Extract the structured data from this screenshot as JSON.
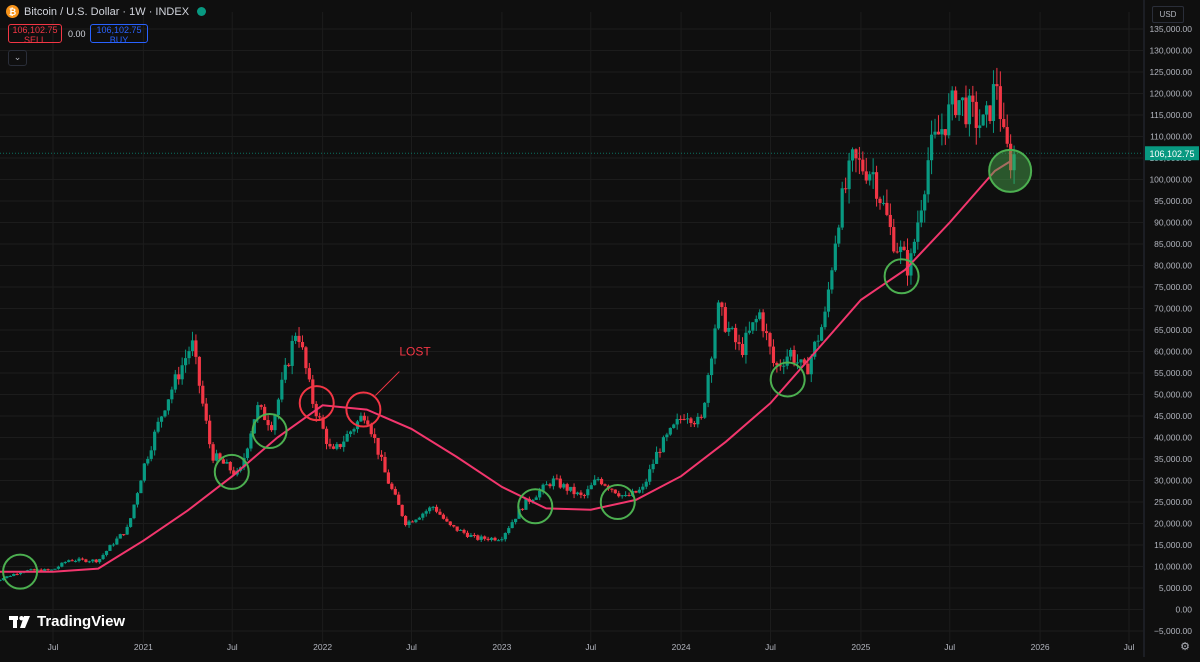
{
  "header": {
    "symbol_icon": "bitcoin-icon",
    "title": "Bitcoin / U.S. Dollar · 1W · INDEX",
    "status_color": "#089981"
  },
  "trade": {
    "sell_price": "106,102.75",
    "sell_label": "SELL",
    "spread": "0.00",
    "buy_price": "106,102.75",
    "buy_label": "BUY"
  },
  "currency": "USD",
  "brand": "TradingView",
  "colors": {
    "up": "#089981",
    "down": "#f23645",
    "ma": "#f2366d",
    "circle_green": "#4caf50",
    "circle_red": "#f23645",
    "background": "#0f0f0f"
  },
  "chart_data": {
    "type": "candlestick",
    "ylim": [
      -5000,
      135000
    ],
    "yticks": [
      "135,000.00",
      "130,000.00",
      "125,000.00",
      "120,000.00",
      "115,000.00",
      "110,000.00",
      "105,000.00",
      "100,000.00",
      "95,000.00",
      "90,000.00",
      "85,000.00",
      "80,000.00",
      "75,000.00",
      "70,000.00",
      "65,000.00",
      "60,000.00",
      "55,000.00",
      "50,000.00",
      "45,000.00",
      "40,000.00",
      "35,000.00",
      "30,000.00",
      "25,000.00",
      "20,000.00",
      "15,000.00",
      "10,000.00",
      "5,000.00",
      "0.00",
      "−5,000.00"
    ],
    "xticks": [
      "Jul",
      "2021",
      "Jul",
      "2022",
      "Jul",
      "2023",
      "Jul",
      "2024",
      "Jul",
      "2025",
      "Jul",
      "2026",
      "Jul"
    ],
    "xtick_dates": [
      "2020-07-01",
      "2021-01-01",
      "2021-07-01",
      "2022-01-01",
      "2022-07-01",
      "2023-01-01",
      "2023-07-01",
      "2024-01-01",
      "2024-07-01",
      "2025-01-01",
      "2025-07-01",
      "2026-01-01",
      "2026-07-01"
    ],
    "last_price": "106,102.75",
    "last_price_value": 106102.75,
    "annotation": "LOST",
    "series": [
      {
        "kind": "moving_average",
        "points": [
          [
            "2020-03-01",
            8800
          ],
          [
            "2020-07-01",
            8800
          ],
          [
            "2020-10-01",
            9500
          ],
          [
            "2021-01-01",
            16000
          ],
          [
            "2021-04-01",
            23000
          ],
          [
            "2021-07-01",
            31000
          ],
          [
            "2021-10-01",
            40000
          ],
          [
            "2022-01-01",
            47500
          ],
          [
            "2022-04-01",
            46500
          ],
          [
            "2022-07-01",
            42000
          ],
          [
            "2022-10-01",
            35500
          ],
          [
            "2023-01-01",
            28500
          ],
          [
            "2023-04-01",
            23500
          ],
          [
            "2023-07-01",
            23200
          ],
          [
            "2023-10-01",
            25500
          ],
          [
            "2024-01-01",
            31000
          ],
          [
            "2024-04-01",
            39000
          ],
          [
            "2024-07-01",
            48000
          ],
          [
            "2024-10-01",
            60000
          ],
          [
            "2025-01-01",
            72000
          ],
          [
            "2025-04-01",
            79000
          ],
          [
            "2025-07-01",
            90000
          ],
          [
            "2025-10-01",
            102000
          ],
          [
            "2025-11-01",
            104200
          ]
        ]
      },
      {
        "kind": "weekly_candles",
        "close_path": [
          [
            "2020-03-01",
            6500
          ],
          [
            "2020-05-01",
            9000
          ],
          [
            "2020-07-01",
            9200
          ],
          [
            "2020-08-01",
            11500
          ],
          [
            "2020-10-01",
            11400
          ],
          [
            "2020-11-01",
            15500
          ],
          [
            "2020-12-01",
            19000
          ],
          [
            "2021-01-01",
            33000
          ],
          [
            "2021-02-15",
            48000
          ],
          [
            "2021-04-10",
            62000
          ],
          [
            "2021-05-20",
            36000
          ],
          [
            "2021-07-15",
            31000
          ],
          [
            "2021-08-20",
            47000
          ],
          [
            "2021-09-20",
            43000
          ],
          [
            "2021-11-10",
            66000
          ],
          [
            "2021-12-10",
            49000
          ],
          [
            "2022-01-20",
            36000
          ],
          [
            "2022-03-30",
            46000
          ],
          [
            "2022-05-10",
            31000
          ],
          [
            "2022-06-20",
            20000
          ],
          [
            "2022-08-15",
            24000
          ],
          [
            "2022-09-15",
            19500
          ],
          [
            "2022-11-10",
            16500
          ],
          [
            "2022-12-30",
            16600
          ],
          [
            "2023-02-15",
            24500
          ],
          [
            "2023-04-15",
            30000
          ],
          [
            "2023-06-15",
            26000
          ],
          [
            "2023-07-15",
            30500
          ],
          [
            "2023-09-10",
            26000
          ],
          [
            "2023-10-15",
            28000
          ],
          [
            "2023-11-15",
            37000
          ],
          [
            "2024-01-10",
            46000
          ],
          [
            "2024-02-10",
            43000
          ],
          [
            "2024-03-15",
            70000
          ],
          [
            "2024-05-01",
            60000
          ],
          [
            "2024-06-10",
            69000
          ],
          [
            "2024-07-10",
            56000
          ],
          [
            "2024-08-10",
            60000
          ],
          [
            "2024-09-10",
            55000
          ],
          [
            "2024-10-20",
            68000
          ],
          [
            "2024-11-15",
            91000
          ],
          [
            "2024-12-15",
            104000
          ],
          [
            "2025-01-25",
            102000
          ],
          [
            "2025-03-05",
            87000
          ],
          [
            "2025-04-10",
            79000
          ],
          [
            "2025-05-20",
            106000
          ],
          [
            "2025-07-15",
            119000
          ],
          [
            "2025-08-15",
            115000
          ],
          [
            "2025-09-10",
            112000
          ],
          [
            "2025-10-05",
            123000
          ],
          [
            "2025-10-20",
            108000
          ],
          [
            "2025-11-03",
            104500
          ],
          [
            "2025-11-10",
            106102.75
          ]
        ]
      }
    ],
    "markers": [
      {
        "date": "2020-04-25",
        "value": 8800,
        "color": "green"
      },
      {
        "date": "2021-06-30",
        "value": 32000,
        "color": "green"
      },
      {
        "date": "2021-09-15",
        "value": 41500,
        "color": "green"
      },
      {
        "date": "2021-12-20",
        "value": 48000,
        "color": "red"
      },
      {
        "date": "2022-03-25",
        "value": 46500,
        "color": "red"
      },
      {
        "date": "2023-03-10",
        "value": 24000,
        "color": "green"
      },
      {
        "date": "2023-08-25",
        "value": 25000,
        "color": "green"
      },
      {
        "date": "2024-08-05",
        "value": 53500,
        "color": "green"
      },
      {
        "date": "2025-03-25",
        "value": 77500,
        "color": "green"
      },
      {
        "date": "2025-11-01",
        "value": 102000,
        "color": "green_filled"
      }
    ]
  }
}
